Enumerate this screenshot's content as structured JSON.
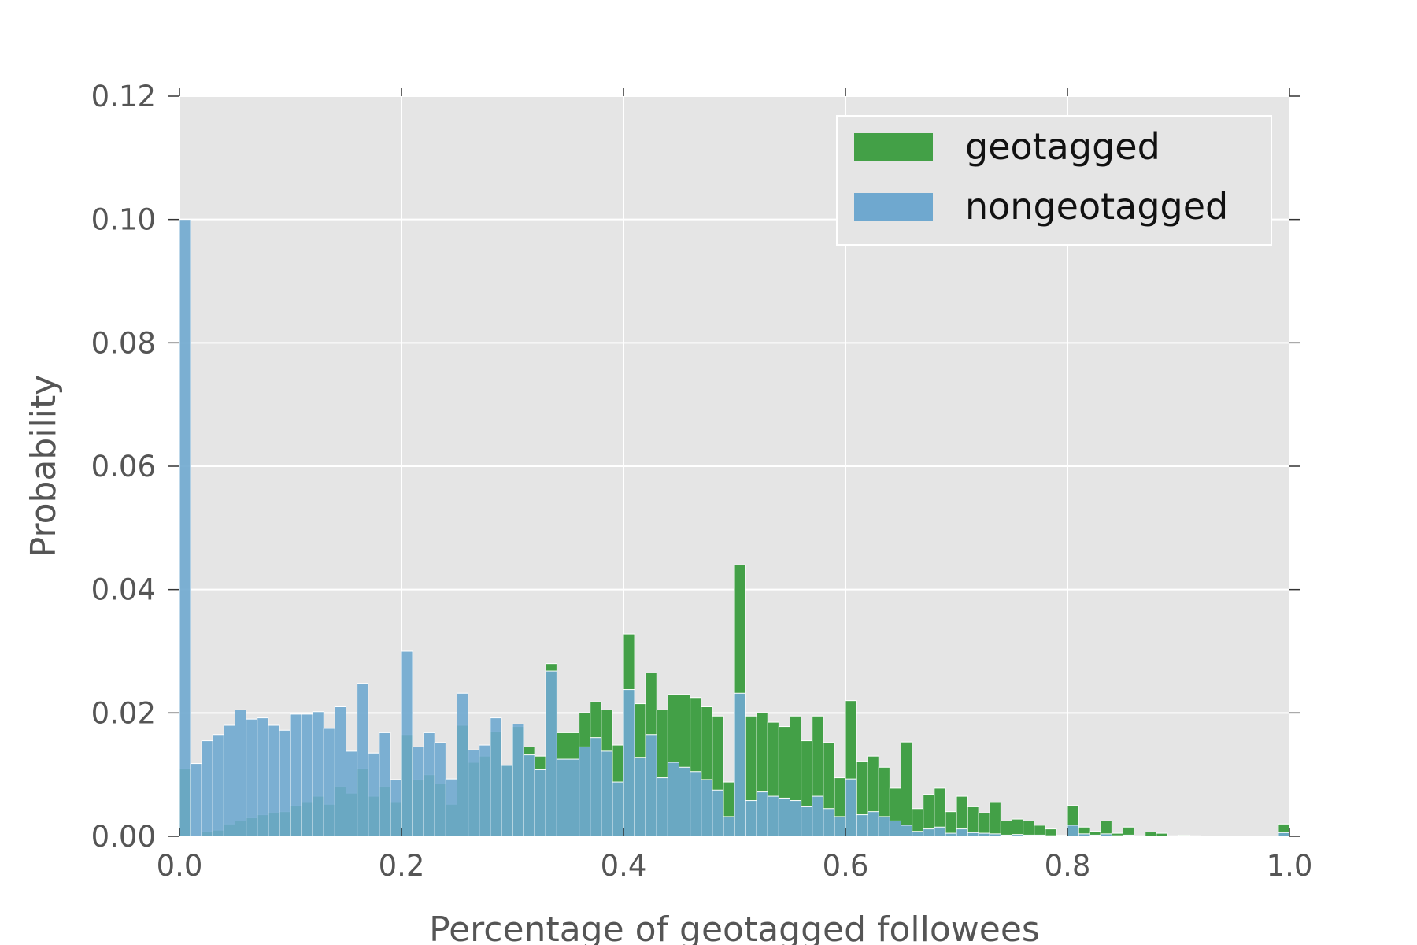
{
  "chart_data": {
    "type": "bar",
    "title": "",
    "xlabel": "Percentage of geotagged followees",
    "ylabel": "Probability",
    "xlim": [
      0.0,
      1.0
    ],
    "ylim": [
      0.0,
      0.12
    ],
    "xticks": [
      "0.0",
      "0.2",
      "0.4",
      "0.6",
      "0.8",
      "1.0"
    ],
    "yticks": [
      "0.00",
      "0.02",
      "0.04",
      "0.06",
      "0.08",
      "0.10",
      "0.12"
    ],
    "grid": true,
    "background": "#e5e5e5",
    "legend_position": "top-right",
    "bin_width": 0.01,
    "series": [
      {
        "name": "geotagged",
        "color": "#43a047",
        "values": [
          0.011,
          0.0002,
          0.0008,
          0.001,
          0.002,
          0.0025,
          0.003,
          0.0035,
          0.0038,
          0.004,
          0.005,
          0.0055,
          0.0065,
          0.0052,
          0.008,
          0.007,
          0.011,
          0.0065,
          0.008,
          0.0055,
          0.0165,
          0.0092,
          0.01,
          0.0085,
          0.0052,
          0.018,
          0.012,
          0.013,
          0.017,
          0.0115,
          0.0178,
          0.0145,
          0.013,
          0.028,
          0.0168,
          0.0168,
          0.02,
          0.0218,
          0.0205,
          0.0148,
          0.0328,
          0.0215,
          0.0265,
          0.0205,
          0.023,
          0.023,
          0.0225,
          0.021,
          0.0195,
          0.0088,
          0.044,
          0.0195,
          0.02,
          0.0185,
          0.0178,
          0.0195,
          0.0155,
          0.0195,
          0.0152,
          0.0095,
          0.022,
          0.0122,
          0.013,
          0.0112,
          0.0078,
          0.0153,
          0.0045,
          0.0068,
          0.0078,
          0.004,
          0.0065,
          0.0048,
          0.0038,
          0.0055,
          0.0025,
          0.0028,
          0.0025,
          0.0018,
          0.0012,
          0.0002,
          0.005,
          0.0015,
          0.0008,
          0.0025,
          0.0005,
          0.0015,
          0.0001,
          0.0007,
          0.0005,
          0.0001,
          0.0002,
          0.0001,
          0,
          0,
          0,
          0,
          0,
          0,
          0,
          0.002
        ]
      },
      {
        "name": "nongeotagged",
        "color": "#6fa8cf",
        "values": [
          0.1,
          0.0118,
          0.0155,
          0.0165,
          0.018,
          0.0205,
          0.019,
          0.0192,
          0.018,
          0.0172,
          0.0198,
          0.0198,
          0.0202,
          0.0175,
          0.021,
          0.0138,
          0.0248,
          0.0135,
          0.0168,
          0.0092,
          0.03,
          0.0145,
          0.0168,
          0.0152,
          0.0093,
          0.0232,
          0.014,
          0.0148,
          0.0192,
          0.0115,
          0.0182,
          0.0132,
          0.0108,
          0.0268,
          0.0125,
          0.0125,
          0.0145,
          0.016,
          0.0138,
          0.0088,
          0.0238,
          0.0128,
          0.0165,
          0.0095,
          0.012,
          0.0112,
          0.0105,
          0.0092,
          0.0075,
          0.0032,
          0.0232,
          0.0058,
          0.0072,
          0.0065,
          0.0062,
          0.0058,
          0.0048,
          0.0065,
          0.0045,
          0.0032,
          0.0093,
          0.0035,
          0.004,
          0.0032,
          0.0025,
          0.0018,
          0.0008,
          0.0012,
          0.0015,
          0.0005,
          0.0012,
          0.0006,
          0.0005,
          0.0004,
          0.0002,
          0.0003,
          0.0002,
          0.0002,
          0.0001,
          0.0001,
          0.0018,
          0.0004,
          0.0002,
          0.0004,
          0.0001,
          0.0002,
          0,
          0,
          0,
          0,
          0,
          0,
          0,
          0,
          0,
          0,
          0,
          0,
          0,
          0.0006
        ]
      }
    ]
  }
}
